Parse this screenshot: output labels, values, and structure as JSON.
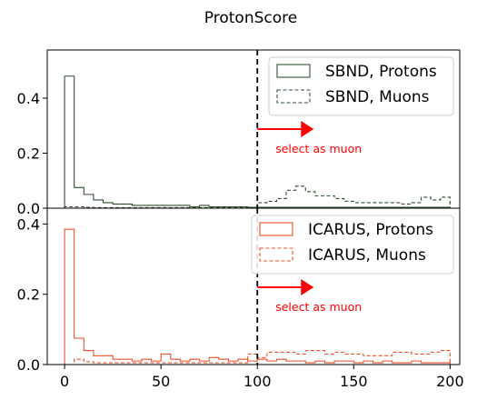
{
  "chart_data": {
    "type": "histogram",
    "title": "ProtonScore",
    "shared_x": {
      "ticks": [
        0,
        50,
        100,
        150,
        200
      ],
      "tick_labels": [
        "0",
        "50",
        "100",
        "150",
        "200"
      ],
      "xlim": [
        -9,
        205
      ],
      "bin_width": 5
    },
    "cut_value": 100,
    "annotation_text": "select as muon",
    "panels": [
      {
        "name": "top",
        "ylim": [
          0,
          0.575
        ],
        "yticks": [
          0,
          0.2,
          0.4
        ],
        "ytick_labels": [
          "0.0",
          "0.2",
          "0.4"
        ],
        "legend_position": "upper right",
        "series": [
          {
            "name": "SBND, Protons",
            "color": "#2f4f2f",
            "style": "solid",
            "bins_start": 0,
            "values": [
              0.48,
              0.075,
              0.05,
              0.03,
              0.02,
              0.015,
              0.015,
              0.01,
              0.01,
              0.01,
              0.01,
              0.01,
              0.01,
              0.005,
              0.01,
              0.005,
              0.005,
              0.005,
              0.005,
              0.003,
              0.003,
              0.003,
              0.003,
              0.003,
              0.003,
              0.003,
              0.003,
              0.003,
              0.003,
              0.003,
              0.003,
              0.003,
              0.003,
              0.003,
              0.003,
              0.003,
              0.003,
              0.003,
              0.003,
              0.003
            ]
          },
          {
            "name": "SBND, Muons",
            "color": "#2f4f2f",
            "style": "dashed",
            "bins_start": 0,
            "values": [
              0.005,
              0.005,
              0.003,
              0.002,
              0.002,
              0.002,
              0.002,
              0.002,
              0.002,
              0.002,
              0.002,
              0.002,
              0.002,
              0.002,
              0.002,
              0.002,
              0.002,
              0.002,
              0.002,
              0.002,
              0.02,
              0.025,
              0.035,
              0.065,
              0.08,
              0.06,
              0.045,
              0.045,
              0.035,
              0.025,
              0.02,
              0.02,
              0.02,
              0.02,
              0.02,
              0.015,
              0.02,
              0.04,
              0.03,
              0.04
            ]
          }
        ]
      },
      {
        "name": "bottom",
        "ylim": [
          0,
          0.445
        ],
        "yticks": [
          0,
          0.2,
          0.4
        ],
        "ytick_labels": [
          "0.0",
          "0.2",
          "0.4"
        ],
        "legend_position": "upper right",
        "series": [
          {
            "name": "ICARUS, Protons",
            "color": "#e8502a",
            "style": "solid",
            "bins_start": 0,
            "values": [
              0.385,
              0.075,
              0.04,
              0.025,
              0.025,
              0.015,
              0.015,
              0.01,
              0.015,
              0.01,
              0.03,
              0.015,
              0.01,
              0.015,
              0.01,
              0.02,
              0.015,
              0.01,
              0.015,
              0.01,
              0.015,
              0.01,
              0.015,
              0.01,
              0.01,
              0.005,
              0.01,
              0.005,
              0.01,
              0.01,
              0.005,
              0.01,
              0.005,
              0.01,
              0.005,
              0.005,
              0.01,
              0.005,
              0.005,
              0.005
            ]
          },
          {
            "name": "ICARUS, Muons",
            "color": "#e8502a",
            "style": "dashed",
            "bins_start": 0,
            "values": [
              0.0,
              0.015,
              0.008,
              0.005,
              0.005,
              0.005,
              0.005,
              0.005,
              0.005,
              0.005,
              0.005,
              0.005,
              0.005,
              0.005,
              0.005,
              0.005,
              0.005,
              0.005,
              0.005,
              0.03,
              0.02,
              0.035,
              0.035,
              0.035,
              0.03,
              0.04,
              0.04,
              0.03,
              0.035,
              0.03,
              0.03,
              0.025,
              0.025,
              0.025,
              0.035,
              0.035,
              0.03,
              0.03,
              0.035,
              0.04
            ]
          }
        ]
      }
    ]
  }
}
